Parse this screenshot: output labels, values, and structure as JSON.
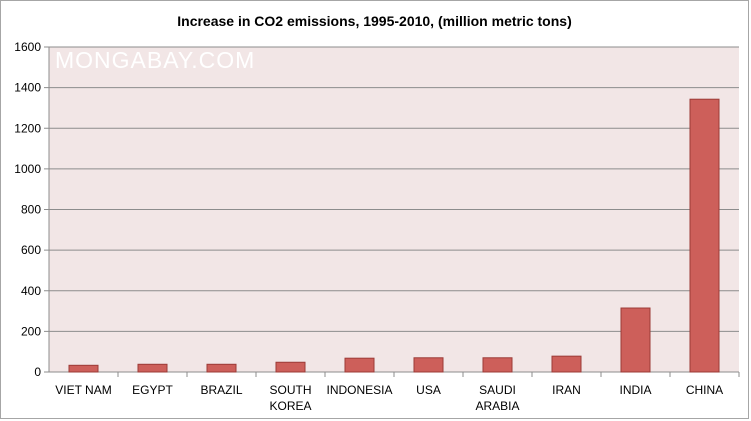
{
  "watermark": "MONGABAY.COM",
  "chart_data": {
    "type": "bar",
    "title": "Increase in CO2 emissions, 1995-2010, (million metric tons)",
    "xlabel": "",
    "ylabel": "",
    "ylim": [
      0,
      1600
    ],
    "yticks": [
      0,
      200,
      400,
      600,
      800,
      1000,
      1200,
      1400,
      1600
    ],
    "grid": true,
    "legend": "none",
    "categories": [
      [
        "VIET NAM"
      ],
      [
        "EGYPT"
      ],
      [
        "BRAZIL"
      ],
      [
        "SOUTH",
        "KOREA"
      ],
      [
        "INDONESIA"
      ],
      [
        "USA"
      ],
      [
        "SAUDI",
        "ARABIA"
      ],
      [
        "IRAN"
      ],
      [
        "INDIA"
      ],
      [
        "CHINA"
      ]
    ],
    "values": [
      33,
      38,
      38,
      48,
      68,
      70,
      70,
      78,
      315,
      1343
    ],
    "colors": {
      "bar": "#cd5f5a",
      "bar_border": "#9c3b37",
      "plot_background": "#f2e6e6",
      "gridline": "#8c8c8c"
    }
  }
}
